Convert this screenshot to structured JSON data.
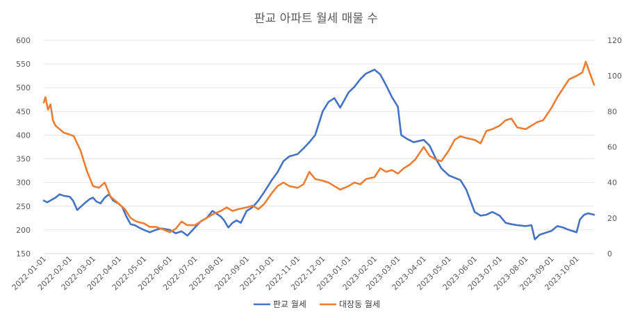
{
  "chart_data": {
    "type": "line",
    "title": "판교 아파트 월세 매물 수",
    "legend_position": "bottom",
    "grid": true,
    "x_ticks": [
      "2022-01-01",
      "2022-02-01",
      "2022-03-01",
      "2022-04-01",
      "2022-05-01",
      "2022-06-01",
      "2022-07-01",
      "2022-08-01",
      "2022-09-01",
      "2022-10-01",
      "2022-11-01",
      "2022-12-01",
      "2023-01-01",
      "2023-02-01",
      "2023-03-01",
      "2023-04-01",
      "2023-05-01",
      "2023-06-01",
      "2023-07-01",
      "2023-08-01",
      "2023-09-01",
      "2023-10-01"
    ],
    "x_range": [
      "2022-01-01",
      "2023-10-22"
    ],
    "y_left": {
      "ticks": [
        150,
        200,
        250,
        300,
        350,
        400,
        450,
        500,
        550,
        600
      ],
      "ylim": [
        150,
        600
      ]
    },
    "y_right": {
      "ticks": [
        0,
        20,
        40,
        60,
        80,
        100,
        120
      ],
      "ylim": [
        0,
        120
      ]
    },
    "series": [
      {
        "name": "판교 월세",
        "axis": "left",
        "color": "#4472C4",
        "points": [
          [
            "2022-01-01",
            262
          ],
          [
            "2022-01-05",
            258
          ],
          [
            "2022-01-10",
            263
          ],
          [
            "2022-01-15",
            268
          ],
          [
            "2022-01-20",
            275
          ],
          [
            "2022-01-25",
            272
          ],
          [
            "2022-02-01",
            270
          ],
          [
            "2022-02-05",
            262
          ],
          [
            "2022-02-10",
            242
          ],
          [
            "2022-02-15",
            250
          ],
          [
            "2022-02-20",
            258
          ],
          [
            "2022-02-25",
            265
          ],
          [
            "2022-03-01",
            268
          ],
          [
            "2022-03-05",
            260
          ],
          [
            "2022-03-10",
            256
          ],
          [
            "2022-03-15",
            268
          ],
          [
            "2022-03-20",
            275
          ],
          [
            "2022-03-25",
            262
          ],
          [
            "2022-04-01",
            255
          ],
          [
            "2022-04-05",
            248
          ],
          [
            "2022-04-10",
            228
          ],
          [
            "2022-04-15",
            212
          ],
          [
            "2022-04-20",
            210
          ],
          [
            "2022-04-25",
            205
          ],
          [
            "2022-05-01",
            200
          ],
          [
            "2022-05-08",
            195
          ],
          [
            "2022-05-15",
            200
          ],
          [
            "2022-05-22",
            203
          ],
          [
            "2022-06-01",
            200
          ],
          [
            "2022-06-08",
            193
          ],
          [
            "2022-06-15",
            197
          ],
          [
            "2022-06-22",
            188
          ],
          [
            "2022-07-01",
            205
          ],
          [
            "2022-07-08",
            218
          ],
          [
            "2022-07-15",
            225
          ],
          [
            "2022-07-22",
            240
          ],
          [
            "2022-08-01",
            228
          ],
          [
            "2022-08-05",
            220
          ],
          [
            "2022-08-10",
            205
          ],
          [
            "2022-08-15",
            215
          ],
          [
            "2022-08-20",
            220
          ],
          [
            "2022-08-25",
            215
          ],
          [
            "2022-09-01",
            240
          ],
          [
            "2022-09-08",
            248
          ],
          [
            "2022-09-15",
            262
          ],
          [
            "2022-09-22",
            280
          ],
          [
            "2022-10-01",
            305
          ],
          [
            "2022-10-08",
            322
          ],
          [
            "2022-10-15",
            345
          ],
          [
            "2022-10-22",
            355
          ],
          [
            "2022-11-01",
            360
          ],
          [
            "2022-11-08",
            372
          ],
          [
            "2022-11-15",
            385
          ],
          [
            "2022-11-22",
            400
          ],
          [
            "2022-12-01",
            450
          ],
          [
            "2022-12-08",
            470
          ],
          [
            "2022-12-15",
            478
          ],
          [
            "2022-12-22",
            458
          ],
          [
            "2023-01-01",
            490
          ],
          [
            "2023-01-08",
            502
          ],
          [
            "2023-01-15",
            518
          ],
          [
            "2023-01-22",
            530
          ],
          [
            "2023-02-01",
            538
          ],
          [
            "2023-02-08",
            528
          ],
          [
            "2023-02-15",
            505
          ],
          [
            "2023-02-22",
            480
          ],
          [
            "2023-03-01",
            460
          ],
          [
            "2023-03-05",
            400
          ],
          [
            "2023-03-12",
            392
          ],
          [
            "2023-03-20",
            385
          ],
          [
            "2023-04-01",
            390
          ],
          [
            "2023-04-08",
            378
          ],
          [
            "2023-04-15",
            352
          ],
          [
            "2023-04-22",
            330
          ],
          [
            "2023-05-01",
            315
          ],
          [
            "2023-05-08",
            310
          ],
          [
            "2023-05-15",
            305
          ],
          [
            "2023-05-22",
            285
          ],
          [
            "2023-06-01",
            238
          ],
          [
            "2023-06-08",
            230
          ],
          [
            "2023-06-15",
            232
          ],
          [
            "2023-06-22",
            238
          ],
          [
            "2023-07-01",
            230
          ],
          [
            "2023-07-08",
            215
          ],
          [
            "2023-07-15",
            212
          ],
          [
            "2023-07-22",
            210
          ],
          [
            "2023-08-01",
            208
          ],
          [
            "2023-08-08",
            210
          ],
          [
            "2023-08-12",
            180
          ],
          [
            "2023-08-18",
            190
          ],
          [
            "2023-09-01",
            198
          ],
          [
            "2023-09-08",
            208
          ],
          [
            "2023-09-15",
            205
          ],
          [
            "2023-09-22",
            200
          ],
          [
            "2023-10-01",
            195
          ],
          [
            "2023-10-05",
            222
          ],
          [
            "2023-10-10",
            232
          ],
          [
            "2023-10-15",
            235
          ],
          [
            "2023-10-22",
            232
          ]
        ]
      },
      {
        "name": "대장동 월세",
        "axis": "right",
        "color": "#ED7D31",
        "points": [
          [
            "2022-01-01",
            85
          ],
          [
            "2022-01-03",
            88
          ],
          [
            "2022-01-06",
            81
          ],
          [
            "2022-01-09",
            84
          ],
          [
            "2022-01-12",
            75
          ],
          [
            "2022-01-15",
            72
          ],
          [
            "2022-01-20",
            70
          ],
          [
            "2022-01-25",
            68
          ],
          [
            "2022-02-01",
            67
          ],
          [
            "2022-02-06",
            66
          ],
          [
            "2022-02-10",
            62
          ],
          [
            "2022-02-14",
            58
          ],
          [
            "2022-02-18",
            52
          ],
          [
            "2022-02-22",
            46
          ],
          [
            "2022-03-01",
            38
          ],
          [
            "2022-03-08",
            37
          ],
          [
            "2022-03-15",
            40
          ],
          [
            "2022-03-22",
            32
          ],
          [
            "2022-04-01",
            28
          ],
          [
            "2022-04-08",
            25
          ],
          [
            "2022-04-15",
            20
          ],
          [
            "2022-04-22",
            18
          ],
          [
            "2022-05-01",
            17
          ],
          [
            "2022-05-08",
            15
          ],
          [
            "2022-05-15",
            15
          ],
          [
            "2022-05-22",
            14
          ],
          [
            "2022-06-01",
            12
          ],
          [
            "2022-06-08",
            14
          ],
          [
            "2022-06-15",
            18
          ],
          [
            "2022-06-22",
            16
          ],
          [
            "2022-07-01",
            16
          ],
          [
            "2022-07-08",
            18
          ],
          [
            "2022-07-15",
            20
          ],
          [
            "2022-07-22",
            22
          ],
          [
            "2022-08-01",
            24
          ],
          [
            "2022-08-08",
            26
          ],
          [
            "2022-08-15",
            24
          ],
          [
            "2022-08-22",
            25
          ],
          [
            "2022-09-01",
            26
          ],
          [
            "2022-09-08",
            27
          ],
          [
            "2022-09-15",
            25
          ],
          [
            "2022-09-22",
            28
          ],
          [
            "2022-10-01",
            34
          ],
          [
            "2022-10-08",
            38
          ],
          [
            "2022-10-15",
            40
          ],
          [
            "2022-10-22",
            38
          ],
          [
            "2022-11-01",
            37
          ],
          [
            "2022-11-08",
            39
          ],
          [
            "2022-11-15",
            46
          ],
          [
            "2022-11-22",
            42
          ],
          [
            "2022-12-01",
            41
          ],
          [
            "2022-12-08",
            40
          ],
          [
            "2022-12-15",
            38
          ],
          [
            "2022-12-22",
            36
          ],
          [
            "2023-01-01",
            38
          ],
          [
            "2023-01-08",
            40
          ],
          [
            "2023-01-15",
            39
          ],
          [
            "2023-01-22",
            42
          ],
          [
            "2023-02-01",
            43
          ],
          [
            "2023-02-08",
            48
          ],
          [
            "2023-02-15",
            46
          ],
          [
            "2023-02-22",
            47
          ],
          [
            "2023-03-01",
            45
          ],
          [
            "2023-03-08",
            48
          ],
          [
            "2023-03-15",
            50
          ],
          [
            "2023-03-22",
            53
          ],
          [
            "2023-04-01",
            60
          ],
          [
            "2023-04-08",
            55
          ],
          [
            "2023-04-15",
            53
          ],
          [
            "2023-04-22",
            52
          ],
          [
            "2023-05-01",
            58
          ],
          [
            "2023-05-08",
            64
          ],
          [
            "2023-05-15",
            66
          ],
          [
            "2023-05-22",
            65
          ],
          [
            "2023-06-01",
            64
          ],
          [
            "2023-06-08",
            62
          ],
          [
            "2023-06-15",
            69
          ],
          [
            "2023-06-22",
            70
          ],
          [
            "2023-07-01",
            72
          ],
          [
            "2023-07-08",
            75
          ],
          [
            "2023-07-15",
            76
          ],
          [
            "2023-07-22",
            71
          ],
          [
            "2023-08-01",
            70
          ],
          [
            "2023-08-08",
            72
          ],
          [
            "2023-08-15",
            74
          ],
          [
            "2023-08-22",
            75
          ],
          [
            "2023-09-01",
            82
          ],
          [
            "2023-09-08",
            88
          ],
          [
            "2023-09-15",
            93
          ],
          [
            "2023-09-22",
            98
          ],
          [
            "2023-10-01",
            100
          ],
          [
            "2023-10-08",
            102
          ],
          [
            "2023-10-12",
            108
          ],
          [
            "2023-10-15",
            104
          ],
          [
            "2023-10-22",
            95
          ]
        ]
      }
    ]
  }
}
